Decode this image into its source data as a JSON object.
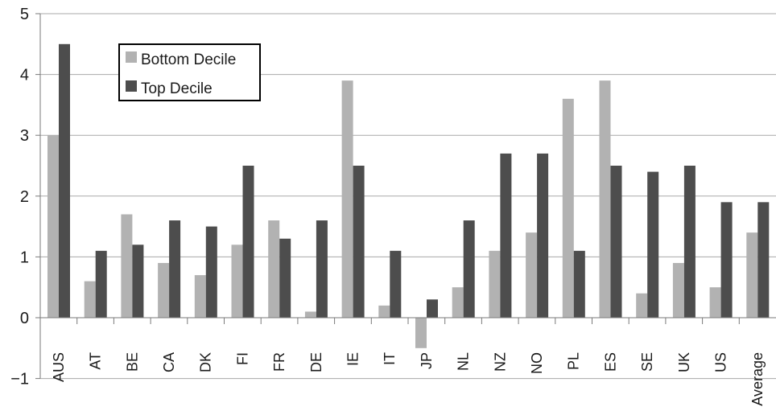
{
  "chart_data": {
    "type": "bar",
    "categories": [
      "AUS",
      "AT",
      "BE",
      "CA",
      "DK",
      "FI",
      "FR",
      "DE",
      "IE",
      "IT",
      "JP",
      "NL",
      "NZ",
      "NO",
      "PL",
      "ES",
      "SE",
      "UK",
      "US",
      "Average"
    ],
    "series": [
      {
        "name": "Bottom Decile",
        "color": "#b2b2b2",
        "values": [
          3.0,
          0.6,
          1.7,
          0.9,
          0.7,
          1.2,
          1.6,
          0.1,
          3.9,
          0.2,
          -0.5,
          0.5,
          1.1,
          1.4,
          3.6,
          3.9,
          0.4,
          0.9,
          0.5,
          1.4
        ]
      },
      {
        "name": "Top Decile",
        "color": "#4d4d4d",
        "values": [
          4.5,
          1.1,
          1.2,
          1.6,
          1.5,
          2.5,
          1.3,
          1.6,
          2.5,
          1.1,
          0.3,
          1.6,
          2.7,
          2.7,
          1.1,
          2.5,
          2.4,
          2.5,
          1.9,
          1.9
        ]
      }
    ],
    "ylim": [
      -1,
      5
    ],
    "yticks": [
      -1,
      0,
      1,
      2,
      3,
      4,
      5
    ],
    "ytick_labels": [
      "−1",
      "0",
      "1",
      "2",
      "3",
      "4",
      "5"
    ],
    "grid": true,
    "legend_position": "top-left"
  }
}
